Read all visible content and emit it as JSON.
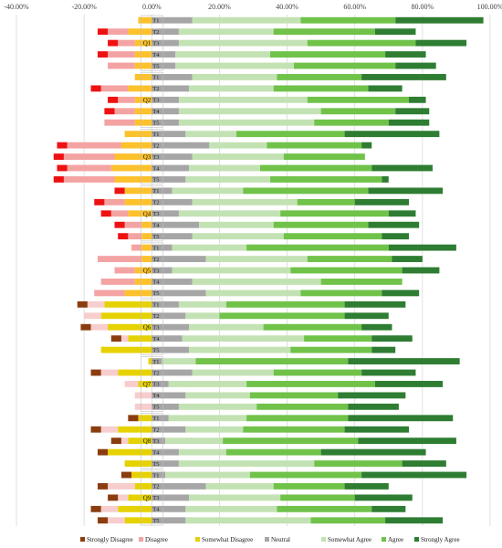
{
  "chart_data": {
    "type": "bar",
    "orientation": "horizontal",
    "stacked": "diverging",
    "x_ticks": [
      "-40.00%",
      "-20.00%",
      "0.00%",
      "20.00%",
      "40.00%",
      "60.00%",
      "80.00%",
      "100.00%"
    ],
    "xlim": [
      -40,
      100
    ],
    "grid": true,
    "legend_position": "bottom",
    "series_names": [
      "Strongly Disagree",
      "Disagree",
      "Somewhat Disagree",
      "Neutral",
      "Somewhat Agree",
      "Agree",
      "Strongly Agree"
    ],
    "colors": [
      "#ee1111",
      "#f4a3a3",
      "#fcc12b",
      "#a6a6a6",
      "#c3e2b3",
      "#70c249",
      "#2e7d32"
    ],
    "colors_alt": [
      "#8b3d10",
      "#f7cdcd",
      "#e6d200",
      "#a6a6a6",
      "#c3e2b3",
      "#70c249",
      "#2e7d32"
    ],
    "groups": [
      {
        "label": "Q1",
        "rows": [
          {
            "label": "T1",
            "values": [
              0,
              0,
              4,
              12,
              32,
              28,
              26
            ]
          },
          {
            "label": "T2",
            "values": [
              3,
              6,
              7,
              8,
              28,
              30,
              12
            ]
          },
          {
            "label": "T3",
            "values": [
              3,
              5,
              5,
              8,
              38,
              32,
              15
            ]
          },
          {
            "label": "T4",
            "values": [
              3,
              8,
              5,
              7,
              28,
              34,
              12
            ]
          },
          {
            "label": "T5",
            "values": [
              0,
              8,
              5,
              7,
              35,
              30,
              12
            ]
          }
        ]
      },
      {
        "label": "Q2",
        "rows": [
          {
            "label": "T1",
            "values": [
              0,
              0,
              5,
              12,
              25,
              25,
              25
            ]
          },
          {
            "label": "T2",
            "values": [
              3,
              8,
              7,
              11,
              25,
              28,
              10
            ]
          },
          {
            "label": "T3",
            "values": [
              3,
              5,
              5,
              8,
              38,
              30,
              5
            ]
          },
          {
            "label": "T4",
            "values": [
              3,
              6,
              5,
              8,
              42,
              22,
              10
            ]
          },
          {
            "label": "T5",
            "values": [
              0,
              9,
              5,
              8,
              40,
              22,
              12
            ]
          }
        ]
      },
      {
        "label": "Q3",
        "rows": [
          {
            "label": "T1",
            "values": [
              0,
              0,
              8,
              10,
              15,
              32,
              28
            ]
          },
          {
            "label": "T2",
            "values": [
              3,
              16,
              9,
              17,
              17,
              28,
              3
            ]
          },
          {
            "label": "T3",
            "values": [
              3,
              15,
              11,
              12,
              27,
              24,
              0
            ]
          },
          {
            "label": "T4",
            "values": [
              3,
              13,
              12,
              11,
              21,
              33,
              18
            ]
          },
          {
            "label": "T5",
            "values": [
              3,
              15,
              11,
              10,
              25,
              33,
              2
            ]
          }
        ]
      },
      {
        "label": "Q4",
        "rows": [
          {
            "label": "T1",
            "values": [
              3,
              0,
              8,
              6,
              21,
              37,
              22
            ]
          },
          {
            "label": "T2",
            "values": [
              3,
              6,
              8,
              12,
              31,
              17,
              16
            ]
          },
          {
            "label": "T3",
            "values": [
              3,
              5,
              7,
              8,
              30,
              32,
              8
            ]
          },
          {
            "label": "T4",
            "values": [
              3,
              5,
              3,
              14,
              22,
              28,
              15
            ]
          },
          {
            "label": "T5",
            "values": [
              3,
              4,
              3,
              12,
              27,
              29,
              8
            ]
          }
        ]
      },
      {
        "label": "Q5",
        "rows": [
          {
            "label": "T1",
            "values": [
              0,
              3,
              3,
              6,
              22,
              42,
              20
            ]
          },
          {
            "label": "T2",
            "values": [
              0,
              13,
              3,
              16,
              30,
              25,
              9
            ]
          },
          {
            "label": "T3",
            "values": [
              0,
              6,
              5,
              6,
              35,
              33,
              11
            ]
          },
          {
            "label": "T4",
            "values": [
              0,
              10,
              5,
              12,
              38,
              24,
              0
            ]
          },
          {
            "label": "T5",
            "values": [
              0,
              9,
              8,
              16,
              28,
              24,
              11
            ]
          }
        ]
      },
      {
        "label": "Q6",
        "rows": [
          {
            "label": "T1",
            "values": [
              3,
              5,
              14,
              8,
              14,
              35,
              18
            ]
          },
          {
            "label": "T2",
            "values": [
              0,
              5,
              15,
              10,
              10,
              37,
              13
            ]
          },
          {
            "label": "T3",
            "values": [
              3,
              5,
              13,
              11,
              22,
              29,
              9
            ]
          },
          {
            "label": "T4",
            "values": [
              3,
              2,
              7,
              9,
              36,
              20,
              12
            ]
          },
          {
            "label": "T5",
            "values": [
              0,
              0,
              15,
              11,
              30,
              24,
              7
            ]
          }
        ]
      },
      {
        "label": "Q7",
        "rows": [
          {
            "label": "T1",
            "values": [
              0,
              0,
              1,
              3,
              10,
              45,
              33
            ]
          },
          {
            "label": "T2",
            "values": [
              3,
              5,
              10,
              12,
              24,
              26,
              16
            ]
          },
          {
            "label": "T3",
            "values": [
              0,
              4,
              4,
              5,
              23,
              38,
              20
            ]
          },
          {
            "label": "T4",
            "values": [
              0,
              5,
              0,
              10,
              19,
              26,
              20
            ]
          },
          {
            "label": "T5",
            "values": [
              0,
              5,
              0,
              8,
              23,
              27,
              15
            ]
          }
        ]
      },
      {
        "label": "Q8",
        "rows": [
          {
            "label": "T1",
            "values": [
              3,
              0,
              4,
              5,
              23,
              30,
              31
            ]
          },
          {
            "label": "T2",
            "values": [
              3,
              5,
              10,
              10,
              17,
              30,
              19
            ]
          },
          {
            "label": "T3",
            "values": [
              3,
              2,
              7,
              4,
              17,
              40,
              29
            ]
          },
          {
            "label": "T4",
            "values": [
              3,
              0,
              13,
              8,
              14,
              28,
              31
            ]
          },
          {
            "label": "T5",
            "values": [
              0,
              0,
              8,
              8,
              40,
              26,
              13
            ]
          }
        ]
      },
      {
        "label": "Q9",
        "rows": [
          {
            "label": "T1",
            "values": [
              3,
              0,
              6,
              4,
              25,
              33,
              31
            ]
          },
          {
            "label": "T2",
            "values": [
              3,
              8,
              5,
              16,
              20,
              21,
              13
            ]
          },
          {
            "label": "T3",
            "values": [
              3,
              3,
              7,
              11,
              27,
              22,
              17
            ]
          },
          {
            "label": "T4",
            "values": [
              3,
              5,
              10,
              10,
              27,
              28,
              10
            ]
          },
          {
            "label": "T5",
            "values": [
              3,
              5,
              8,
              10,
              37,
              22,
              17
            ]
          }
        ]
      }
    ]
  }
}
